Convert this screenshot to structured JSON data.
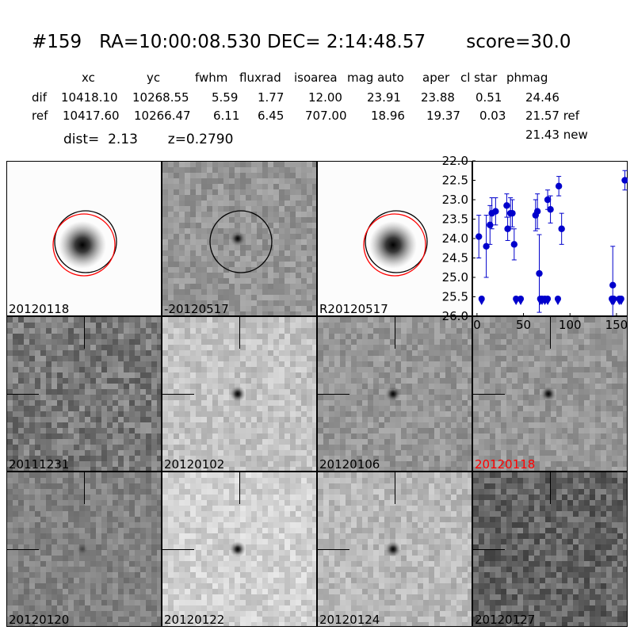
{
  "header": {
    "title": "#159   RA=10:00:08.530 DEC= 2:14:48.57       score=30.0",
    "columns": [
      "xc",
      "yc",
      "fwhm",
      "fluxrad",
      "isoarea",
      "mag auto",
      "aper",
      "cl star",
      "phmag"
    ],
    "rows": [
      {
        "label": "dif",
        "values": [
          "10418.10",
          "10268.55",
          "5.59",
          "1.77",
          "12.00",
          "23.91",
          "23.88",
          "0.51",
          "24.46"
        ]
      },
      {
        "label": "ref",
        "values": [
          "10417.60",
          "10266.47",
          "6.11",
          "6.45",
          "707.00",
          "18.96",
          "19.37",
          "0.03",
          "21.57 ref"
        ]
      }
    ],
    "phmag_new": "21.43 new",
    "dist_line": "dist=  2.13       z=0.2790"
  },
  "panels": [
    {
      "label": "20120118",
      "tone": 252,
      "kind": "galaxy",
      "circles": true
    },
    {
      "label": "-20120517",
      "tone": 150,
      "kind": "diff",
      "circles": "black"
    },
    {
      "label": "R20120517",
      "tone": 252,
      "kind": "galaxy",
      "circles": true
    },
    {
      "label": "20111231",
      "tone": 120,
      "kind": "noisy"
    },
    {
      "label": "20120102",
      "tone": 195,
      "kind": "spot"
    },
    {
      "label": "20120106",
      "tone": 150,
      "kind": "spot"
    },
    {
      "label": "20120118",
      "tone": 150,
      "kind": "spot",
      "highlight": "#ff0000"
    },
    {
      "label": "20120120",
      "tone": 130,
      "kind": "faint"
    },
    {
      "label": "20120122",
      "tone": 210,
      "kind": "spot"
    },
    {
      "label": "20120124",
      "tone": 185,
      "kind": "spot"
    },
    {
      "label": "20120127",
      "tone": 100,
      "kind": "noisy"
    }
  ],
  "chart_data": {
    "type": "scatter",
    "title": "",
    "xlabel": "",
    "ylabel": "",
    "xlim": [
      -5,
      162
    ],
    "ylim": [
      26.0,
      22.0
    ],
    "yticks": [
      "22.0",
      "22.5",
      "23.0",
      "23.5",
      "24.0",
      "24.5",
      "25.0",
      "25.5",
      "26.0"
    ],
    "xticks": [
      "0",
      "50",
      "100",
      "150"
    ],
    "marker_color": "#0000cc",
    "detections": [
      {
        "x": 2,
        "y": 23.95,
        "err": 0.55
      },
      {
        "x": 10,
        "y": 24.2,
        "err": 0.8
      },
      {
        "x": 14,
        "y": 23.65,
        "err": 0.5
      },
      {
        "x": 16,
        "y": 23.35,
        "err": 0.4
      },
      {
        "x": 20,
        "y": 23.3,
        "err": 0.35
      },
      {
        "x": 32,
        "y": 23.15,
        "err": 0.3
      },
      {
        "x": 33,
        "y": 23.75,
        "err": 0.3
      },
      {
        "x": 36,
        "y": 23.35,
        "err": 0.4
      },
      {
        "x": 38,
        "y": 23.35,
        "err": 0.35
      },
      {
        "x": 40,
        "y": 24.15,
        "err": 0.4
      },
      {
        "x": 63,
        "y": 23.4,
        "err": 0.4
      },
      {
        "x": 65,
        "y": 23.3,
        "err": 0.45
      },
      {
        "x": 67,
        "y": 24.9,
        "err": 1.0
      },
      {
        "x": 76,
        "y": 23.0,
        "err": 0.25
      },
      {
        "x": 79,
        "y": 23.25,
        "err": 0.35
      },
      {
        "x": 88,
        "y": 22.65,
        "err": 0.25
      },
      {
        "x": 91,
        "y": 23.75,
        "err": 0.4
      },
      {
        "x": 146,
        "y": 25.2,
        "err": 1.0
      },
      {
        "x": 159,
        "y": 22.5,
        "err": 0.25
      }
    ],
    "upper_limits": [
      5,
      42,
      47,
      68,
      70,
      73,
      76,
      87,
      145,
      147,
      153,
      155
    ],
    "limit_y": 25.55
  }
}
